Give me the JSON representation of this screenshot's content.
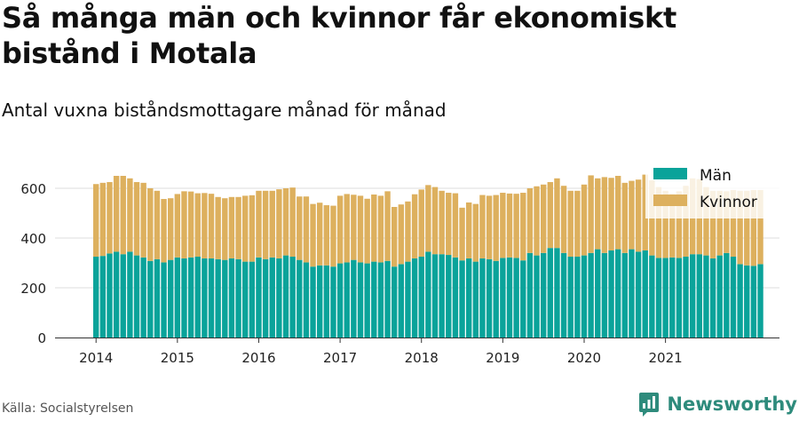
{
  "header": {
    "title": "Så många män och kvinnor får ekonomiskt bistånd i Motala",
    "subtitle": "Antal vuxna biståndsmottagare månad för månad"
  },
  "footer": {
    "source": "Källa: Socialstyrelsen",
    "brand": "Newsworthy"
  },
  "colors": {
    "man": "#0aa39a",
    "kvinnor": "#ddb05e",
    "grid": "#dddddd",
    "brand": "#2e8b7c"
  },
  "chart_data": {
    "type": "bar",
    "stacked": true,
    "x_start": "2014-01",
    "x_tick_labels": [
      "2014",
      "2015",
      "2016",
      "2017",
      "2018",
      "2019",
      "2020",
      "2021"
    ],
    "ylim": [
      0,
      700
    ],
    "y_ticks": [
      0,
      200,
      400,
      600
    ],
    "grid": true,
    "legend_position": "top-right",
    "series": [
      {
        "name": "Män",
        "color": "#0aa39a",
        "values": [
          325,
          328,
          338,
          345,
          335,
          345,
          330,
          322,
          308,
          315,
          302,
          312,
          322,
          318,
          322,
          325,
          318,
          318,
          315,
          312,
          318,
          315,
          305,
          305,
          322,
          315,
          322,
          318,
          330,
          325,
          312,
          302,
          285,
          290,
          290,
          285,
          298,
          302,
          312,
          302,
          298,
          305,
          302,
          308,
          285,
          295,
          305,
          318,
          325,
          345,
          335,
          335,
          332,
          322,
          310,
          318,
          305,
          318,
          315,
          308,
          320,
          322,
          320,
          310,
          340,
          330,
          340,
          360,
          360,
          340,
          325,
          325,
          330,
          340,
          355,
          340,
          350,
          355,
          340,
          355,
          345,
          350,
          330,
          320,
          320,
          322,
          320,
          325,
          335,
          335,
          330,
          318,
          330,
          340,
          325,
          295,
          290,
          288,
          295
        ]
      },
      {
        "name": "Kvinnor",
        "values": [
          292,
          294,
          287,
          305,
          315,
          295,
          295,
          300,
          292,
          275,
          255,
          248,
          255,
          270,
          265,
          255,
          263,
          260,
          250,
          248,
          247,
          250,
          265,
          267,
          268,
          275,
          268,
          278,
          270,
          278,
          255,
          265,
          252,
          252,
          242,
          245,
          272,
          275,
          262,
          268,
          260,
          270,
          268,
          280,
          240,
          240,
          242,
          258,
          270,
          268,
          270,
          255,
          250,
          258,
          212,
          225,
          232,
          255,
          255,
          265,
          262,
          257,
          258,
          272,
          260,
          278,
          275,
          265,
          280,
          270,
          265,
          265,
          285,
          312,
          285,
          305,
          292,
          295,
          282,
          275,
          290,
          305,
          302,
          285,
          270,
          255,
          268,
          285,
          305,
          302,
          275,
          272,
          260,
          248,
          268,
          295,
          300,
          305,
          298
        ],
        "color": "#ddb05e"
      }
    ]
  }
}
